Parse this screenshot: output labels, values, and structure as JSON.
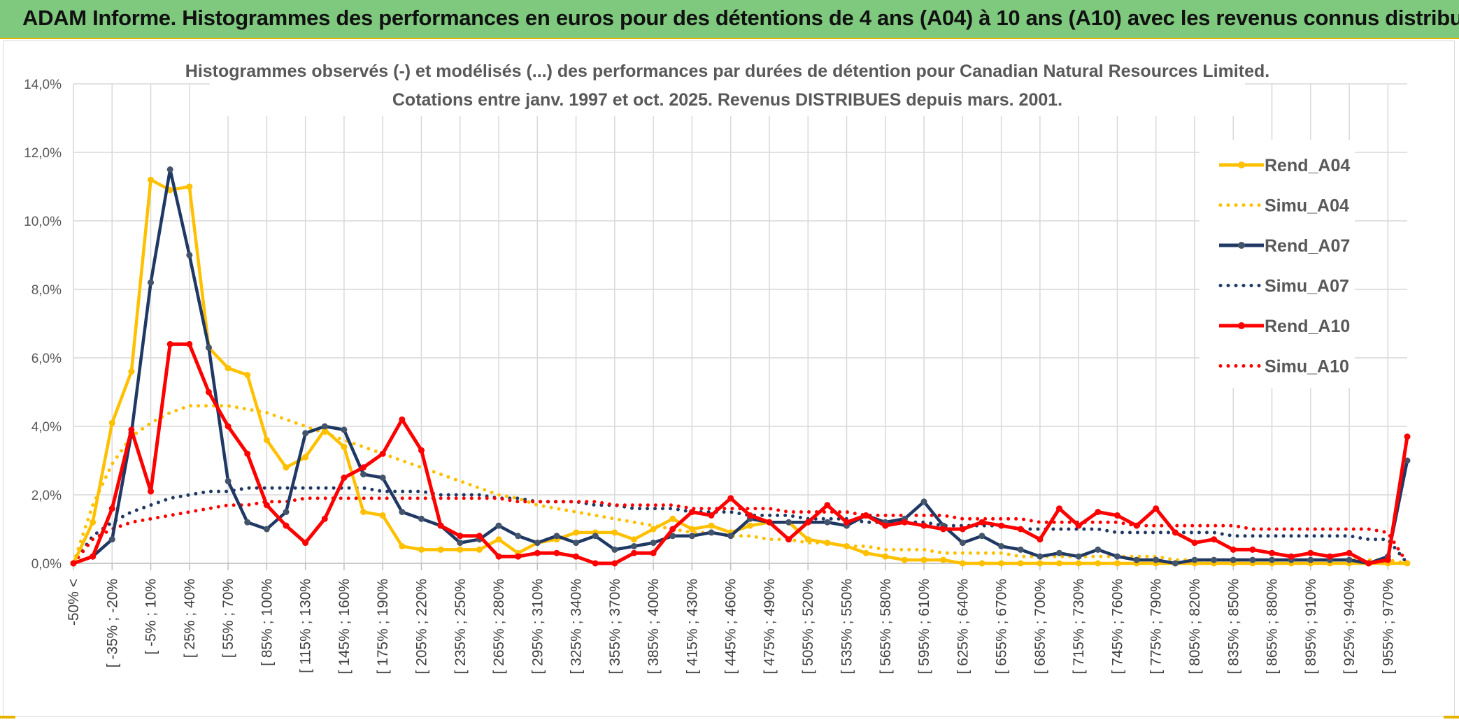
{
  "header": {
    "banner": "ADAM Informe. Histogrammes des performances en euros pour des détentions de 4 ans (A04) à 10 ans (A10) avec les revenus connus distribués"
  },
  "colors": {
    "a04": "#ffc000",
    "a07": "#1f3864",
    "a10": "#ff0000",
    "grid": "#d9d9d9",
    "banner": "#7fc97f"
  },
  "chart_data": {
    "type": "line",
    "title": "Histogrammes observés (-) et modélisés (...) des performances par durées de détention pour Canadian Natural Resources Limited.",
    "subtitle": "Cotations entre janv. 1997 et oct. 2025. Revenus DISTRIBUES depuis mars. 2001.",
    "xlabel": "",
    "ylabel": "",
    "ylim": [
      0,
      0.14
    ],
    "yticks": [
      "0,0%",
      "2,0%",
      "4,0%",
      "6,0%",
      "8,0%",
      "10,0%",
      "12,0%",
      "14,0%"
    ],
    "ytick_values": [
      0,
      0.02,
      0.04,
      0.06,
      0.08,
      0.1,
      0.12,
      0.14
    ],
    "xtick_labels": [
      "-50% <",
      "[ -35% ; -20%",
      "[ -5% ; 10%",
      "[ 25% ; 40%",
      "[ 55% ; 70%",
      "[ 85% ; 100%",
      "[ 115% ; 130%",
      "[ 145% ; 160%",
      "[ 175% ; 190%",
      "[ 205% ; 220%",
      "[ 235% ; 250%",
      "[ 265% ; 280%",
      "[ 295% ; 310%",
      "[ 325% ; 340%",
      "[ 355% ; 370%",
      "[ 385% ; 400%",
      "[ 415% ; 430%",
      "[ 445% ; 460%",
      "[ 475% ; 490%",
      "[ 505% ; 520%",
      "[ 535% ; 550%",
      "[ 565% ; 580%",
      "[ 595% ; 610%",
      "[ 625% ; 640%",
      "[ 655% ; 670%",
      "[ 685% ; 700%",
      "[ 715% ; 730%",
      "[ 745% ; 760%",
      "[ 775% ; 790%",
      "[ 805% ; 820%",
      "[ 835% ; 850%",
      "[ 865% ; 880%",
      "[ 895% ; 910%",
      "[ 925% ; 940%",
      "[ 955% ; 970%"
    ],
    "xtick_step": 2,
    "legend_position": "right",
    "series": [
      {
        "name": "Rend_A04",
        "style": "solid",
        "color": "#ffc000",
        "values": [
          0.0,
          0.012,
          0.041,
          0.056,
          0.112,
          0.109,
          0.11,
          0.063,
          0.057,
          0.055,
          0.036,
          0.028,
          0.031,
          0.039,
          0.034,
          0.015,
          0.014,
          0.005,
          0.004,
          0.004,
          0.004,
          0.004,
          0.007,
          0.003,
          0.006,
          0.007,
          0.009,
          0.009,
          0.009,
          0.007,
          0.01,
          0.013,
          0.01,
          0.011,
          0.009,
          0.011,
          0.012,
          0.012,
          0.007,
          0.006,
          0.005,
          0.003,
          0.002,
          0.001,
          0.001,
          0.001,
          0.0,
          0.0,
          0.0,
          0.0,
          0.0,
          0.0,
          0.0,
          0.0,
          0.0,
          0.0,
          0.0,
          0.0,
          0.0,
          0.0,
          0.0,
          0.0,
          0.0,
          0.0,
          0.0,
          0.0,
          0.0,
          0.0,
          0.0,
          0.0
        ]
      },
      {
        "name": "Simu_A04",
        "style": "dotted",
        "color": "#ffc000",
        "values": [
          0.0,
          0.017,
          0.029,
          0.037,
          0.041,
          0.044,
          0.046,
          0.046,
          0.046,
          0.045,
          0.044,
          0.042,
          0.04,
          0.038,
          0.036,
          0.034,
          0.032,
          0.03,
          0.028,
          0.026,
          0.024,
          0.022,
          0.02,
          0.019,
          0.017,
          0.016,
          0.015,
          0.014,
          0.013,
          0.012,
          0.011,
          0.01,
          0.009,
          0.009,
          0.008,
          0.008,
          0.007,
          0.007,
          0.006,
          0.006,
          0.005,
          0.005,
          0.004,
          0.004,
          0.004,
          0.003,
          0.003,
          0.003,
          0.003,
          0.002,
          0.002,
          0.002,
          0.002,
          0.002,
          0.002,
          0.002,
          0.002,
          0.001,
          0.001,
          0.001,
          0.001,
          0.001,
          0.001,
          0.001,
          0.001,
          0.001,
          0.001,
          0.001,
          0.001,
          0.0
        ]
      },
      {
        "name": "Rend_A07",
        "style": "solid",
        "color": "#1f3864",
        "values": [
          0.0,
          0.002,
          0.007,
          0.038,
          0.082,
          0.115,
          0.09,
          0.063,
          0.024,
          0.012,
          0.01,
          0.015,
          0.038,
          0.04,
          0.039,
          0.026,
          0.025,
          0.015,
          0.013,
          0.011,
          0.006,
          0.007,
          0.011,
          0.008,
          0.006,
          0.008,
          0.006,
          0.008,
          0.004,
          0.005,
          0.006,
          0.008,
          0.008,
          0.009,
          0.008,
          0.013,
          0.012,
          0.012,
          0.012,
          0.012,
          0.011,
          0.014,
          0.012,
          0.013,
          0.018,
          0.011,
          0.006,
          0.008,
          0.005,
          0.004,
          0.002,
          0.003,
          0.002,
          0.004,
          0.002,
          0.001,
          0.001,
          0.0,
          0.001,
          0.001,
          0.001,
          0.001,
          0.001,
          0.001,
          0.001,
          0.001,
          0.001,
          0.0,
          0.002,
          0.03
        ]
      },
      {
        "name": "Simu_A07",
        "style": "dotted",
        "color": "#1f3864",
        "values": [
          0.0,
          0.008,
          0.012,
          0.015,
          0.017,
          0.019,
          0.02,
          0.021,
          0.021,
          0.022,
          0.022,
          0.022,
          0.022,
          0.022,
          0.022,
          0.022,
          0.021,
          0.021,
          0.021,
          0.02,
          0.02,
          0.02,
          0.019,
          0.019,
          0.018,
          0.018,
          0.018,
          0.017,
          0.017,
          0.016,
          0.016,
          0.016,
          0.015,
          0.015,
          0.015,
          0.014,
          0.014,
          0.014,
          0.013,
          0.013,
          0.013,
          0.012,
          0.012,
          0.012,
          0.012,
          0.011,
          0.011,
          0.011,
          0.011,
          0.01,
          0.01,
          0.01,
          0.01,
          0.01,
          0.009,
          0.009,
          0.009,
          0.009,
          0.009,
          0.009,
          0.008,
          0.008,
          0.008,
          0.008,
          0.008,
          0.008,
          0.008,
          0.007,
          0.007,
          0.0
        ]
      },
      {
        "name": "Rend_A10",
        "style": "solid",
        "color": "#ff0000",
        "values": [
          0.0,
          0.002,
          0.016,
          0.039,
          0.021,
          0.064,
          0.064,
          0.05,
          0.04,
          0.032,
          0.017,
          0.011,
          0.006,
          0.013,
          0.025,
          0.028,
          0.032,
          0.042,
          0.033,
          0.011,
          0.008,
          0.008,
          0.002,
          0.002,
          0.003,
          0.003,
          0.002,
          0.0,
          0.0,
          0.003,
          0.003,
          0.01,
          0.015,
          0.014,
          0.019,
          0.014,
          0.012,
          0.007,
          0.012,
          0.017,
          0.012,
          0.014,
          0.011,
          0.012,
          0.011,
          0.01,
          0.01,
          0.012,
          0.011,
          0.01,
          0.007,
          0.016,
          0.011,
          0.015,
          0.014,
          0.011,
          0.016,
          0.009,
          0.006,
          0.007,
          0.004,
          0.004,
          0.003,
          0.002,
          0.003,
          0.002,
          0.003,
          0.0,
          0.001,
          0.037
        ]
      },
      {
        "name": "Simu_A10",
        "style": "dotted",
        "color": "#ff0000",
        "values": [
          0.0,
          0.007,
          0.01,
          0.012,
          0.013,
          0.014,
          0.015,
          0.016,
          0.017,
          0.017,
          0.018,
          0.018,
          0.019,
          0.019,
          0.019,
          0.019,
          0.019,
          0.019,
          0.019,
          0.019,
          0.019,
          0.019,
          0.019,
          0.018,
          0.018,
          0.018,
          0.018,
          0.018,
          0.017,
          0.017,
          0.017,
          0.017,
          0.016,
          0.016,
          0.016,
          0.016,
          0.016,
          0.015,
          0.015,
          0.015,
          0.015,
          0.014,
          0.014,
          0.014,
          0.014,
          0.014,
          0.013,
          0.013,
          0.013,
          0.013,
          0.012,
          0.012,
          0.012,
          0.012,
          0.012,
          0.011,
          0.011,
          0.011,
          0.011,
          0.011,
          0.011,
          0.01,
          0.01,
          0.01,
          0.01,
          0.01,
          0.01,
          0.01,
          0.009,
          0.0
        ]
      }
    ]
  }
}
